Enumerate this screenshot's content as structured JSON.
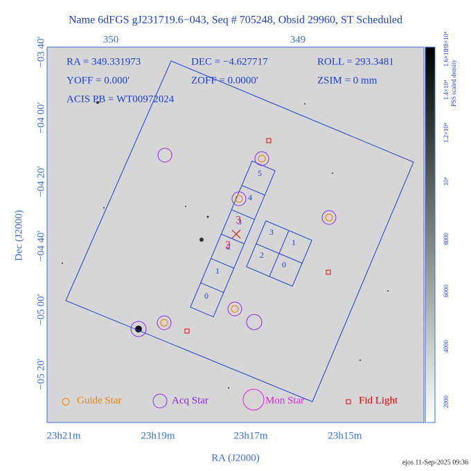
{
  "header": {
    "title": "Name 6dFGS gJ231719.6−043, Seq # 705248, Obsid 29960, ST Scheduled"
  },
  "top_axis": {
    "ticks": [
      "350",
      "349"
    ]
  },
  "left_axis": {
    "label": "Dec (J2000)",
    "ticks": [
      "−03 40′",
      "−04 00′",
      "−04 20′",
      "−04 40′",
      "−05 00′",
      "−05 20′"
    ]
  },
  "bottom_axis": {
    "label": "RA (J2000)",
    "ticks": [
      "23h21m",
      "23h19m",
      "23h17m",
      "23h15m"
    ]
  },
  "info": {
    "lines": [
      [
        "RA = 349.331973",
        "DEC = −4.627717",
        "ROLL = 293.3481"
      ],
      [
        "YOFF =    0.000′",
        "ZOFF =   0.0000′",
        "ZSIM = 0 mm"
      ],
      [
        "ACIS PB = WT00972024"
      ]
    ]
  },
  "chips": {
    "s_array": [
      "0",
      "1",
      "2",
      "3",
      "4",
      "5"
    ],
    "i_array": [
      "3",
      "1",
      "2",
      "0"
    ],
    "aimpoint": [
      "2",
      "3"
    ]
  },
  "legend": {
    "items": [
      "Guide Star",
      "Acq Star",
      "Mon Star",
      "Fid Light"
    ]
  },
  "colorbar": {
    "label": "PSS scaled density",
    "ticks": [
      "2000",
      "4000",
      "6000",
      "8000",
      "10⁴",
      "1.2×10⁴",
      "1.4×10⁴",
      "1.6×10⁴",
      "1.8×10⁴"
    ]
  },
  "footer": {
    "stamp": "ejos 11-Sep-2025 09:36"
  }
}
